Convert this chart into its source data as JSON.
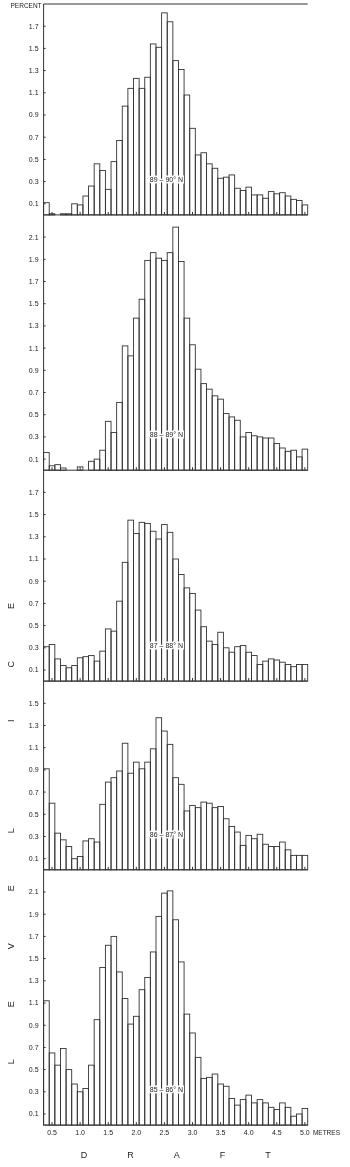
{
  "chart_data": [
    {
      "type": "histogram",
      "ylabel": "PERCENT",
      "annotations": [
        "89 – 90° N"
      ],
      "color": "#333333",
      "tick_labels": "y",
      "bins": [
        0.35,
        0.45,
        0.55,
        0.65,
        0.75,
        0.85,
        0.95,
        1.05,
        1.15,
        1.25,
        1.35,
        1.45,
        1.55,
        1.65,
        1.75,
        1.85,
        1.95,
        2.05,
        2.15,
        2.25,
        2.35,
        2.45,
        2.55,
        2.65,
        2.75,
        2.85,
        2.95,
        3.05,
        3.15,
        3.25,
        3.35,
        3.45,
        3.55,
        3.65,
        3.75,
        3.85,
        3.95,
        4.05,
        4.15,
        4.25,
        4.35,
        4.45,
        4.55,
        4.65,
        4.75,
        4.85,
        4.95,
        5.05
      ],
      "values": [
        0.11,
        0.01,
        0.0,
        0.01,
        0.01,
        0.1,
        0.09,
        0.17,
        0.26,
        0.46,
        0.4,
        0.23,
        0.48,
        0.67,
        0.98,
        1.14,
        1.23,
        1.14,
        1.24,
        1.54,
        1.51,
        1.82,
        1.74,
        1.39,
        1.31,
        1.08,
        0.78,
        0.54,
        0.56,
        0.46,
        0.42,
        0.33,
        0.34,
        0.36,
        0.24,
        0.22,
        0.25,
        0.18,
        0.18,
        0.15,
        0.21,
        0.19,
        0.2,
        0.17,
        0.14,
        0.13,
        0.09
      ],
      "xlim": [
        0.35,
        5.05
      ],
      "xticks": [
        {
          "value": 0.5,
          "label": null
        },
        {
          "value": 1,
          "label": null
        },
        {
          "value": 1.5,
          "label": null
        },
        {
          "value": 2,
          "label": null
        },
        {
          "value": 2.5,
          "label": null
        },
        {
          "value": 3,
          "label": null
        },
        {
          "value": 3.5,
          "label": null
        },
        {
          "value": 4,
          "label": null
        },
        {
          "value": 4.5,
          "label": null
        },
        {
          "value": 5,
          "label": null
        }
      ],
      "ylim": [
        0,
        1.9
      ],
      "yticks": [
        0.1,
        0.3,
        0.5,
        0.7,
        0.9,
        1.1,
        1.3,
        1.5,
        1.7
      ]
    },
    {
      "type": "histogram",
      "annotations": [
        "88 – 89° N"
      ],
      "color": "#333333",
      "tick_labels": "y",
      "bins": [
        0.35,
        0.45,
        0.55,
        0.65,
        0.75,
        0.85,
        0.95,
        1.05,
        1.15,
        1.25,
        1.35,
        1.45,
        1.55,
        1.65,
        1.75,
        1.85,
        1.95,
        2.05,
        2.15,
        2.25,
        2.35,
        2.45,
        2.55,
        2.65,
        2.75,
        2.85,
        2.95,
        3.05,
        3.15,
        3.25,
        3.35,
        3.45,
        3.55,
        3.65,
        3.75,
        3.85,
        3.95,
        4.05,
        4.15,
        4.25,
        4.35,
        4.45,
        4.55,
        4.65,
        4.75,
        4.85,
        4.95,
        5.05
      ],
      "values": [
        0.16,
        0.04,
        0.05,
        0.02,
        0.0,
        0.0,
        0.03,
        0.0,
        0.08,
        0.1,
        0.18,
        0.44,
        0.34,
        0.61,
        1.12,
        1.03,
        1.37,
        1.54,
        1.89,
        1.96,
        1.91,
        1.89,
        1.96,
        2.19,
        1.88,
        1.37,
        1.13,
        0.91,
        0.78,
        0.73,
        0.67,
        0.64,
        0.51,
        0.48,
        0.45,
        0.3,
        0.34,
        0.31,
        0.3,
        0.29,
        0.29,
        0.24,
        0.2,
        0.17,
        0.18,
        0.12,
        0.19
      ],
      "xlim": [
        0.35,
        5.05
      ],
      "xticks": [
        {
          "value": 0.5,
          "label": null
        },
        {
          "value": 1,
          "label": null
        },
        {
          "value": 1.5,
          "label": null
        },
        {
          "value": 2,
          "label": null
        },
        {
          "value": 2.5,
          "label": null
        },
        {
          "value": 3,
          "label": null
        },
        {
          "value": 3.5,
          "label": null
        },
        {
          "value": 4,
          "label": null
        },
        {
          "value": 4.5,
          "label": null
        },
        {
          "value": 5,
          "label": null
        }
      ],
      "ylim": [
        0,
        2.3
      ],
      "yticks": [
        0.1,
        0.3,
        0.5,
        0.7,
        0.9,
        1.1,
        1.3,
        1.5,
        1.7,
        1.9,
        2.1
      ]
    },
    {
      "type": "histogram",
      "annotations": [
        "87 – 88° N"
      ],
      "color": "#333333",
      "tick_labels": "y",
      "bins": [
        0.35,
        0.45,
        0.55,
        0.65,
        0.75,
        0.85,
        0.95,
        1.05,
        1.15,
        1.25,
        1.35,
        1.45,
        1.55,
        1.65,
        1.75,
        1.85,
        1.95,
        2.05,
        2.15,
        2.25,
        2.35,
        2.45,
        2.55,
        2.65,
        2.75,
        2.85,
        2.95,
        3.05,
        3.15,
        3.25,
        3.35,
        3.45,
        3.55,
        3.65,
        3.75,
        3.85,
        3.95,
        4.05,
        4.15,
        4.25,
        4.35,
        4.45,
        4.55,
        4.65,
        4.75,
        4.85,
        4.95,
        5.05
      ],
      "values": [
        0.31,
        0.33,
        0.2,
        0.14,
        0.12,
        0.14,
        0.21,
        0.22,
        0.23,
        0.18,
        0.27,
        0.47,
        0.45,
        0.72,
        1.07,
        1.45,
        1.33,
        1.43,
        1.42,
        1.35,
        1.28,
        1.41,
        1.34,
        1.1,
        0.96,
        0.84,
        0.79,
        0.64,
        0.49,
        0.36,
        0.33,
        0.44,
        0.3,
        0.26,
        0.31,
        0.32,
        0.26,
        0.23,
        0.15,
        0.18,
        0.2,
        0.19,
        0.17,
        0.15,
        0.13,
        0.15,
        0.15
      ],
      "xlim": [
        0.35,
        5.05
      ],
      "xticks": [
        {
          "value": 0.5,
          "label": null
        },
        {
          "value": 1,
          "label": null
        },
        {
          "value": 1.5,
          "label": null
        },
        {
          "value": 2,
          "label": null
        },
        {
          "value": 2.5,
          "label": null
        },
        {
          "value": 3,
          "label": null
        },
        {
          "value": 3.5,
          "label": null
        },
        {
          "value": 4,
          "label": null
        },
        {
          "value": 4.5,
          "label": null
        },
        {
          "value": 5,
          "label": null
        }
      ],
      "ylim": [
        0,
        1.9
      ],
      "yticks": [
        0.1,
        0.3,
        0.5,
        0.7,
        0.9,
        1.1,
        1.3,
        1.5,
        1.7
      ]
    },
    {
      "type": "histogram",
      "ylabel": "LEVEL ICE",
      "annotations": [
        "86 – 87° N"
      ],
      "color": "#333333",
      "tick_labels": "y",
      "bins": [
        0.35,
        0.45,
        0.55,
        0.65,
        0.75,
        0.85,
        0.95,
        1.05,
        1.15,
        1.25,
        1.35,
        1.45,
        1.55,
        1.65,
        1.75,
        1.85,
        1.95,
        2.05,
        2.15,
        2.25,
        2.35,
        2.45,
        2.55,
        2.65,
        2.75,
        2.85,
        2.95,
        3.05,
        3.15,
        3.25,
        3.35,
        3.45,
        3.55,
        3.65,
        3.75,
        3.85,
        3.95,
        4.05,
        4.15,
        4.25,
        4.35,
        4.45,
        4.55,
        4.65,
        4.75,
        4.85,
        4.95,
        5.05
      ],
      "values": [
        0.91,
        0.6,
        0.33,
        0.27,
        0.21,
        0.1,
        0.12,
        0.26,
        0.28,
        0.25,
        0.59,
        0.79,
        0.83,
        0.89,
        1.14,
        0.87,
        0.97,
        0.91,
        0.97,
        1.09,
        1.37,
        1.25,
        1.13,
        0.83,
        0.77,
        0.53,
        0.58,
        0.56,
        0.61,
        0.6,
        0.56,
        0.57,
        0.46,
        0.39,
        0.34,
        0.22,
        0.31,
        0.28,
        0.32,
        0.23,
        0.21,
        0.21,
        0.25,
        0.18,
        0.13,
        0.13,
        0.13
      ],
      "xlim": [
        0.35,
        5.05
      ],
      "xticks": [
        {
          "value": 0.5,
          "label": null
        },
        {
          "value": 1,
          "label": null
        },
        {
          "value": 1.5,
          "label": null
        },
        {
          "value": 2,
          "label": null
        },
        {
          "value": 2.5,
          "label": null
        },
        {
          "value": 3,
          "label": null
        },
        {
          "value": 3.5,
          "label": null
        },
        {
          "value": 4,
          "label": null
        },
        {
          "value": 4.5,
          "label": null
        },
        {
          "value": 5,
          "label": null
        }
      ],
      "ylim": [
        0,
        1.7
      ],
      "yticks": [
        0.1,
        0.3,
        0.5,
        0.7,
        0.9,
        1.1,
        1.3,
        1.5
      ]
    },
    {
      "type": "histogram",
      "xlabel": "DRAFT",
      "annotations": [
        "85 – 86° N",
        "METRES"
      ],
      "color": "#333333",
      "bins": [
        0.35,
        0.45,
        0.55,
        0.65,
        0.75,
        0.85,
        0.95,
        1.05,
        1.15,
        1.25,
        1.35,
        1.45,
        1.55,
        1.65,
        1.75,
        1.85,
        1.95,
        2.05,
        2.15,
        2.25,
        2.35,
        2.45,
        2.55,
        2.65,
        2.75,
        2.85,
        2.95,
        3.05,
        3.15,
        3.25,
        3.35,
        3.45,
        3.55,
        3.65,
        3.75,
        3.85,
        3.95,
        4.05,
        4.15,
        4.25,
        4.35,
        4.45,
        4.55,
        4.65,
        4.75,
        4.85,
        4.95,
        5.05
      ],
      "values": [
        1.12,
        0.65,
        0.54,
        0.69,
        0.5,
        0.37,
        0.3,
        0.33,
        0.54,
        0.95,
        1.42,
        1.62,
        1.7,
        1.38,
        1.14,
        0.91,
        0.98,
        1.22,
        1.33,
        1.56,
        1.88,
        2.09,
        2.11,
        1.85,
        1.47,
        1.0,
        0.83,
        0.61,
        0.42,
        0.43,
        0.46,
        0.37,
        0.35,
        0.24,
        0.18,
        0.23,
        0.27,
        0.2,
        0.23,
        0.2,
        0.16,
        0.14,
        0.2,
        0.16,
        0.08,
        0.1,
        0.15
      ],
      "xlim": [
        0.35,
        5.05
      ],
      "xticks": [
        0.5,
        {
          "value": 1,
          "label": "1.0"
        },
        1.5,
        {
          "value": 2,
          "label": "2.0"
        },
        2.5,
        {
          "value": 3,
          "label": "3.0"
        },
        3.5,
        {
          "value": 4,
          "label": "4.0"
        },
        4.5,
        {
          "value": 5,
          "label": "5.0"
        }
      ],
      "ylim": [
        0,
        2.3
      ],
      "yticks": [
        0.1,
        0.3,
        0.5,
        0.7,
        0.9,
        1.1,
        1.3,
        1.5,
        1.7,
        1.9,
        2.1
      ]
    }
  ]
}
